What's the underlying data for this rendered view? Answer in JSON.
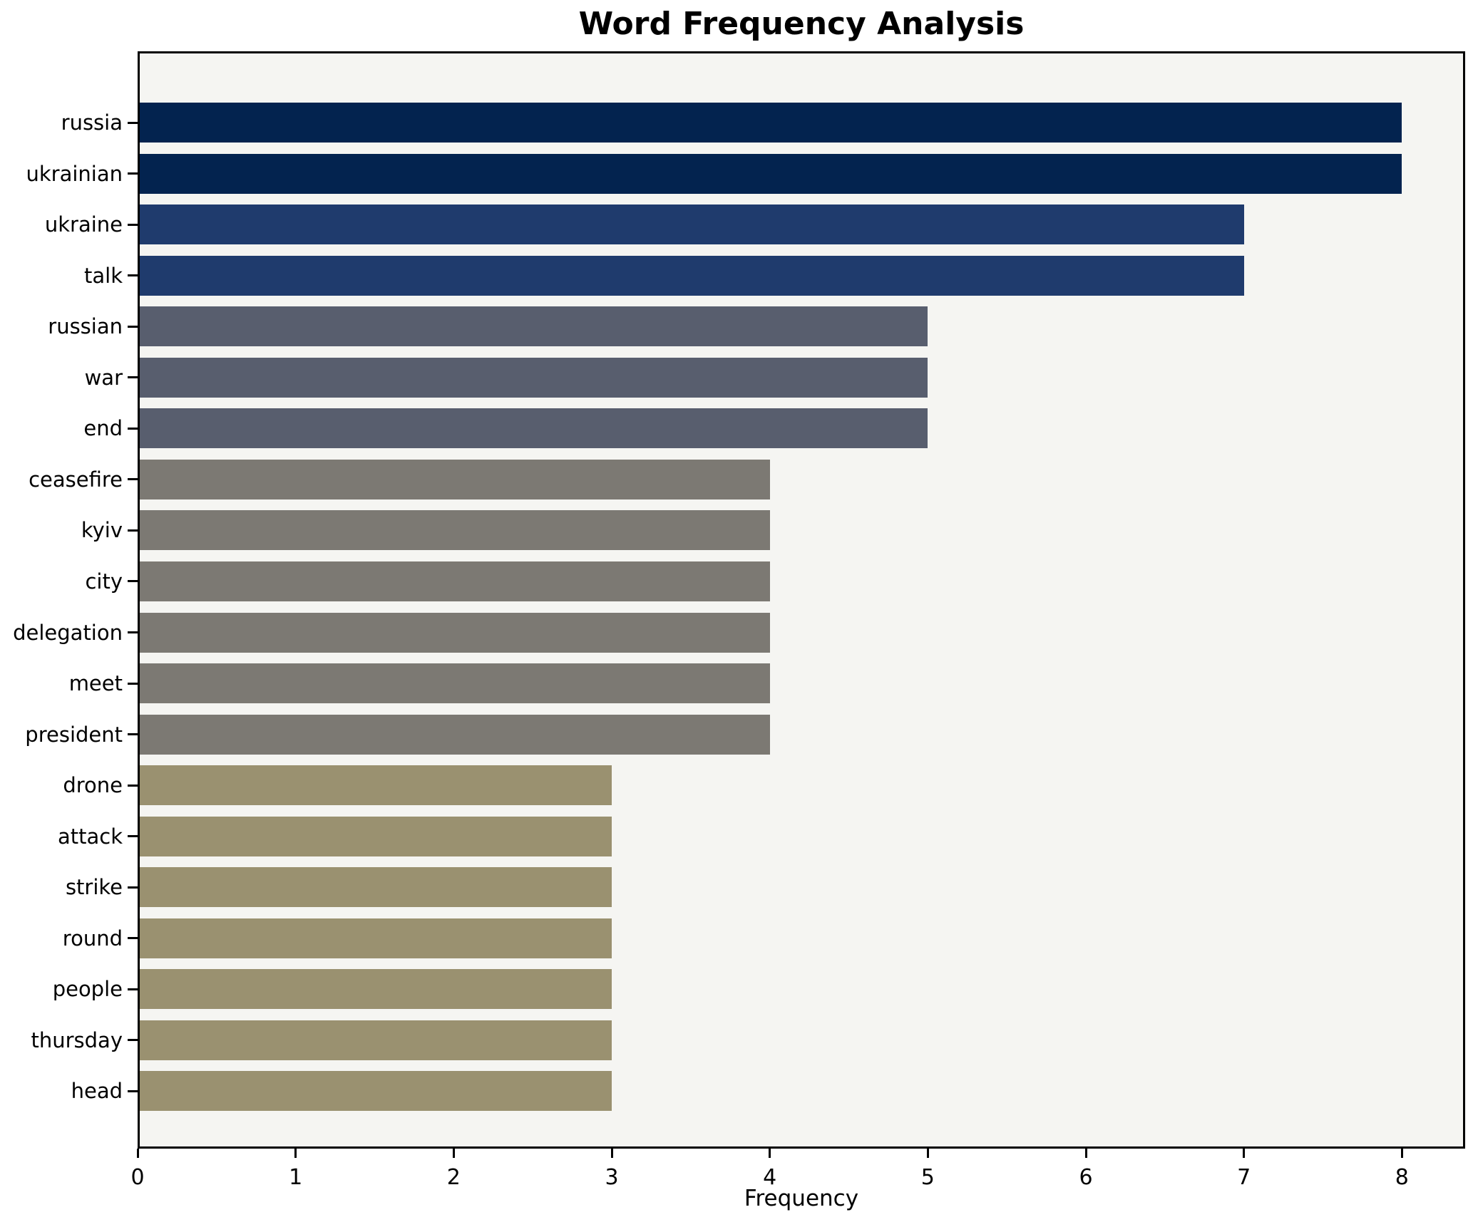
{
  "chart_data": {
    "type": "bar",
    "orientation": "horizontal",
    "title": "Word Frequency Analysis",
    "xlabel": "Frequency",
    "ylabel": "",
    "categories": [
      "russia",
      "ukrainian",
      "ukraine",
      "talk",
      "russian",
      "war",
      "end",
      "ceasefire",
      "kyiv",
      "city",
      "delegation",
      "meet",
      "president",
      "drone",
      "attack",
      "strike",
      "round",
      "people",
      "thursday",
      "head"
    ],
    "values": [
      8,
      8,
      7,
      7,
      5,
      5,
      5,
      4,
      4,
      4,
      4,
      4,
      4,
      3,
      3,
      3,
      3,
      3,
      3,
      3
    ],
    "xticks": [
      0,
      1,
      2,
      3,
      4,
      5,
      6,
      7,
      8
    ],
    "xlim": [
      0,
      8.4
    ],
    "grid": false,
    "legend": null,
    "bar_colors_by_value": {
      "8": "#03234f",
      "7": "#1f3b6d",
      "5": "#585e6e",
      "4": "#7c7973",
      "3": "#9a9170"
    },
    "plot_background": "#f5f5f2",
    "figure_background": "#ffffff",
    "spine_color": "#000000"
  }
}
